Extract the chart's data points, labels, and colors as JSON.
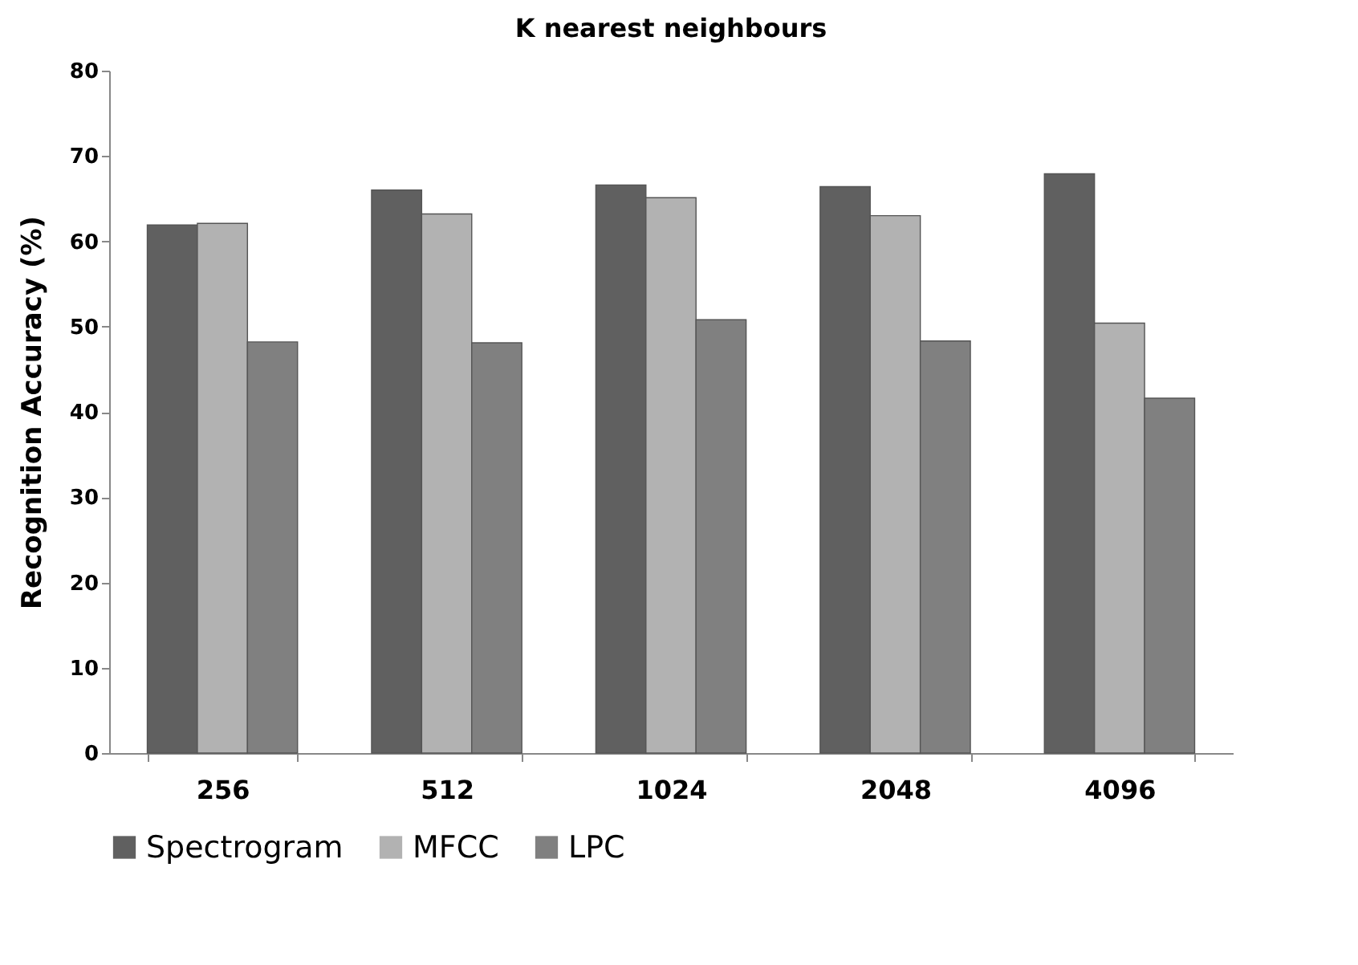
{
  "chart_data": {
    "type": "bar",
    "title": "K nearest neighbours",
    "ylabel": "Recognition Accuracy (%)",
    "categories": [
      "256",
      "512",
      "1024",
      "2048",
      "4096"
    ],
    "series": [
      {
        "name": "Spectrogram",
        "color": "#606060",
        "values": [
          61.9,
          66.0,
          66.6,
          66.4,
          67.9
        ]
      },
      {
        "name": "MFCC",
        "color": "#b2b2b2",
        "values": [
          62.1,
          63.2,
          65.1,
          63.0,
          50.4
        ]
      },
      {
        "name": "LPC",
        "color": "#808080",
        "values": [
          48.2,
          48.1,
          50.8,
          48.3,
          41.6
        ]
      }
    ],
    "ylim": [
      0,
      80
    ],
    "yticks": [
      0,
      10,
      20,
      30,
      40,
      50,
      60,
      70,
      80
    ],
    "grid": false,
    "legend": "bottom"
  }
}
